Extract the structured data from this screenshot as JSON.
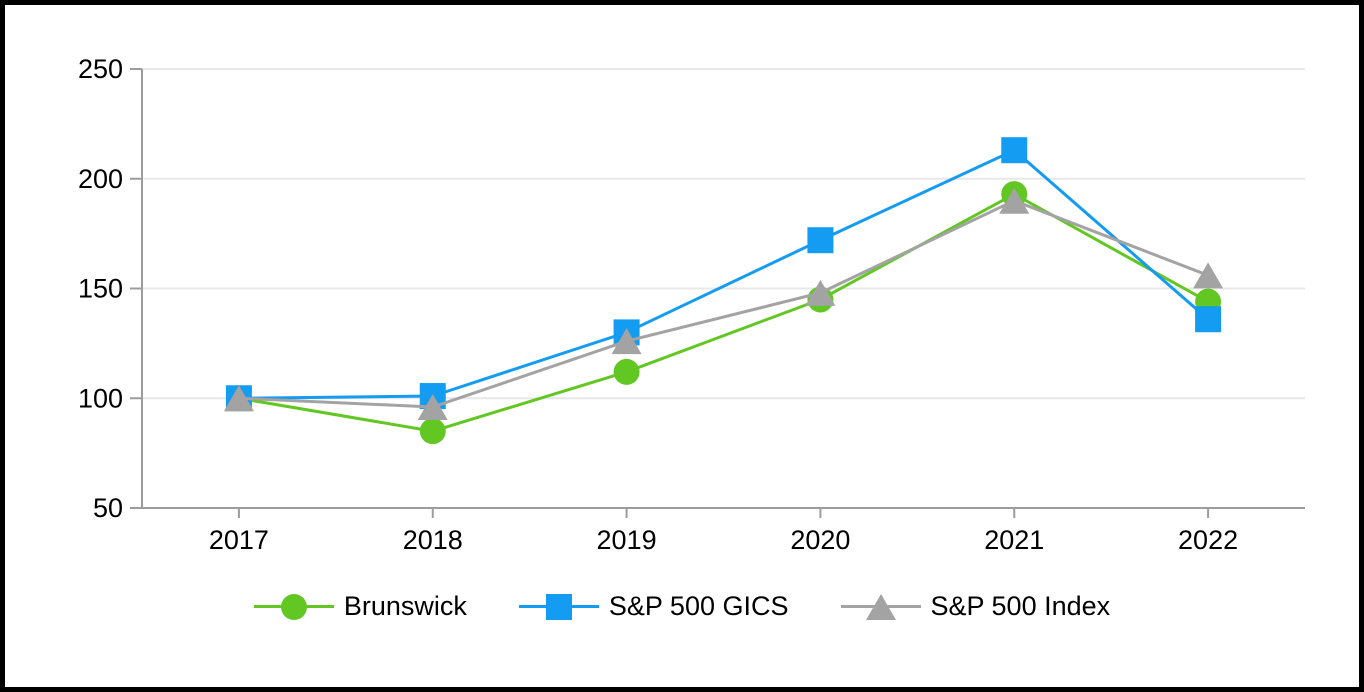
{
  "chart_data": {
    "type": "line",
    "title": "",
    "xlabel": "",
    "ylabel": "",
    "categories": [
      "2017",
      "2018",
      "2019",
      "2020",
      "2021",
      "2022"
    ],
    "y_ticks": [
      50,
      100,
      150,
      200,
      250
    ],
    "ylim": [
      50,
      250
    ],
    "grid": true,
    "legend_position": "bottom",
    "series": [
      {
        "name": "Brunswick",
        "marker": "circle",
        "color": "#62C723",
        "values": [
          100,
          85,
          112,
          145,
          193,
          144
        ]
      },
      {
        "name": "S&P 500 GICS",
        "marker": "square",
        "color": "#149BF2",
        "values": [
          100,
          101,
          130,
          172,
          213,
          136
        ]
      },
      {
        "name": "S&P 500 Index",
        "marker": "triangle",
        "color": "#A3A3A3",
        "values": [
          100,
          96,
          126,
          148,
          190,
          156
        ]
      }
    ]
  },
  "style": {
    "background": "#FFFFFF",
    "frame_border": "#000000",
    "axis_color": "#9C9C9C",
    "grid_color": "#E8E8E8",
    "text_color": "#000000"
  }
}
